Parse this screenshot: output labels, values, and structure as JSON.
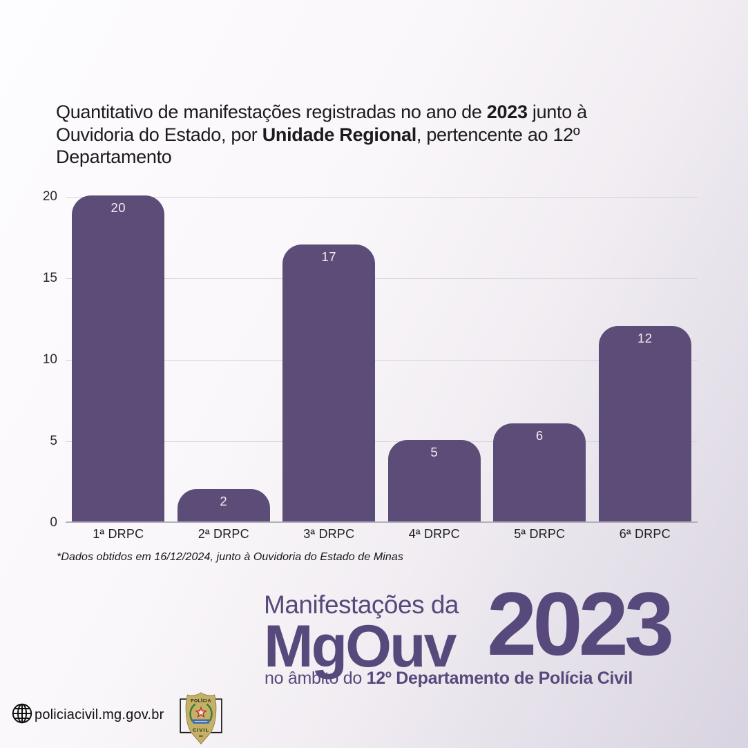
{
  "title": {
    "lines": [
      [
        {
          "text": "Quantitativo de manifestações registradas no ano de ",
          "bold": false
        },
        {
          "text": "2023",
          "bold": true
        },
        {
          "text": " junto à",
          "bold": false
        }
      ],
      [
        {
          "text": "Ouvidoria do Estado, por ",
          "bold": false
        },
        {
          "text": "Unidade Regional",
          "bold": true
        },
        {
          "text": ", pertencente ao 12º",
          "bold": false
        }
      ],
      [
        {
          "text": "Departamento",
          "bold": false
        }
      ]
    ]
  },
  "chart_data": {
    "type": "bar",
    "categories": [
      "1ª DRPC",
      "2ª DRPC",
      "3ª DRPC",
      "4ª DRPC",
      "5ª DRPC",
      "6ª DRPC"
    ],
    "values": [
      20,
      2,
      17,
      5,
      6,
      12
    ],
    "title": "Quantitativo de manifestações registradas no ano de 2023 junto à Ouvidoria do Estado, por Unidade Regional, pertencente ao 12º Departamento",
    "xlabel": "",
    "ylabel": "",
    "ylim": [
      0,
      20
    ],
    "yticks": [
      0,
      5,
      10,
      15,
      20
    ],
    "grid": true,
    "legend": false,
    "bar_color": "#5c4d78",
    "value_label_color": "#f2eaf1"
  },
  "footnote": "*Dados obtidos em 16/12/2024, junto à Ouvidoria do Estado de Minas",
  "branding": {
    "line1": "Manifestações da",
    "logo": "MgOuv",
    "year": "2023",
    "line3_prefix": "no âmbito do ",
    "line3_bold": "12º Departamento de Polícia Civil",
    "accent_color": "#57497c"
  },
  "footer": {
    "website": "policiacivil.mg.gov.br",
    "badge": {
      "top_label": "POLÍCIA",
      "bottom_label": "CIVIL",
      "state_label": "MG"
    }
  }
}
